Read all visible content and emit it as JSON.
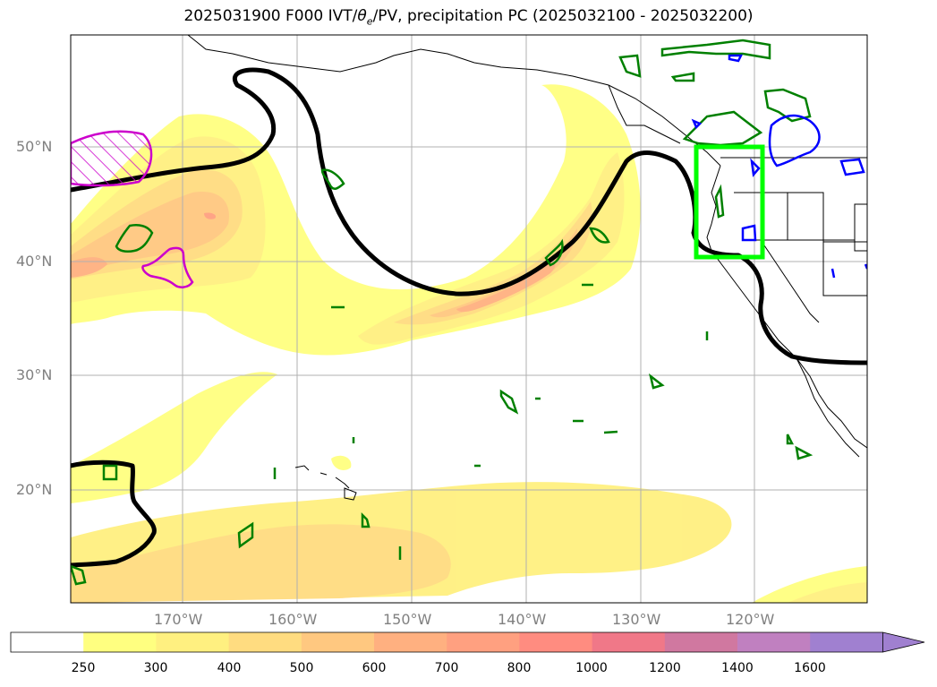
{
  "title": "2025031900 F000 IVT/θe/PV, precipitation PC (2025032100 - 2025032200)",
  "title_parts": {
    "before": "2025031900 F000 IVT/",
    "theta": "θ",
    "theta_sub": "e",
    "after": "/PV, precipitation PC (2025032100 - 2025032200)"
  },
  "lat_labels": [
    "50°N",
    "40°N",
    "30°N",
    "20°N"
  ],
  "lon_labels": [
    "170°W",
    "160°W",
    "150°W",
    "140°W",
    "130°W",
    "120°W"
  ],
  "colorbar": {
    "ticks": [
      "250",
      "300",
      "400",
      "500",
      "600",
      "700",
      "800",
      "1000",
      "1200",
      "1400",
      "1600"
    ],
    "colors": [
      "#ffffff",
      "#ffff80",
      "#fff080",
      "#ffdc80",
      "#ffc880",
      "#ffb080",
      "#ffa080",
      "#ff8c80",
      "#f07888",
      "#d078a0",
      "#c080c0",
      "#a080d0"
    ]
  },
  "map_colors": {
    "theta_e_contour": "#000000",
    "precip_pc_positive": "#008000",
    "precip_pc_negative": "#0000ff",
    "pv_region": "#cc00cc",
    "highlight_box": "#00ff00"
  }
}
